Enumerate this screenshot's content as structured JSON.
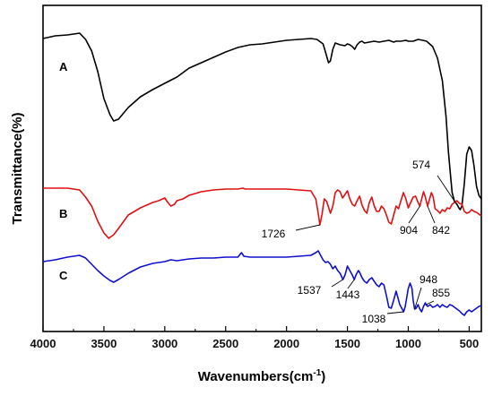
{
  "chart_data": {
    "type": "line",
    "xlabel_main": "Wavenumbers(cm",
    "xlabel_sup": "-1",
    "xlabel_end": ")",
    "ylabel": "Transmittance(%)",
    "xlim": [
      4000,
      400
    ],
    "x_reversed": true,
    "x_ticks": [
      4000,
      3500,
      3000,
      2500,
      2000,
      1500,
      1000,
      500
    ],
    "grid": false,
    "series": [
      {
        "name": "A",
        "color": "#000000",
        "points": [
          [
            4000,
            43
          ],
          [
            3900,
            40
          ],
          [
            3800,
            39
          ],
          [
            3700,
            37
          ],
          [
            3650,
            44
          ],
          [
            3600,
            57
          ],
          [
            3550,
            80
          ],
          [
            3500,
            110
          ],
          [
            3450,
            128
          ],
          [
            3420,
            135
          ],
          [
            3380,
            133
          ],
          [
            3300,
            120
          ],
          [
            3200,
            108
          ],
          [
            3100,
            100
          ],
          [
            3000,
            93
          ],
          [
            2900,
            86
          ],
          [
            2800,
            76
          ],
          [
            2700,
            70
          ],
          [
            2600,
            64
          ],
          [
            2500,
            58
          ],
          [
            2400,
            53
          ],
          [
            2300,
            50
          ],
          [
            2200,
            49
          ],
          [
            2100,
            47
          ],
          [
            2000,
            45
          ],
          [
            1900,
            44
          ],
          [
            1800,
            43
          ],
          [
            1750,
            44
          ],
          [
            1700,
            49
          ],
          [
            1680,
            58
          ],
          [
            1655,
            70
          ],
          [
            1640,
            68
          ],
          [
            1620,
            55
          ],
          [
            1600,
            48
          ],
          [
            1560,
            50
          ],
          [
            1520,
            51
          ],
          [
            1500,
            49
          ],
          [
            1480,
            50
          ],
          [
            1460,
            52
          ],
          [
            1440,
            55
          ],
          [
            1420,
            50
          ],
          [
            1400,
            47
          ],
          [
            1380,
            46
          ],
          [
            1360,
            48
          ],
          [
            1320,
            47
          ],
          [
            1280,
            46
          ],
          [
            1240,
            47
          ],
          [
            1200,
            46
          ],
          [
            1160,
            45
          ],
          [
            1120,
            47
          ],
          [
            1100,
            46
          ],
          [
            1060,
            46
          ],
          [
            1020,
            45
          ],
          [
            1000,
            46
          ],
          [
            960,
            46
          ],
          [
            920,
            44
          ],
          [
            880,
            45
          ],
          [
            850,
            46
          ],
          [
            800,
            52
          ],
          [
            760,
            65
          ],
          [
            720,
            90
          ],
          [
            690,
            130
          ],
          [
            670,
            170
          ],
          [
            650,
            200
          ],
          [
            640,
            215
          ],
          [
            620,
            225
          ],
          [
            600,
            228
          ],
          [
            585,
            232
          ],
          [
            574,
            234
          ],
          [
            560,
            230
          ],
          [
            540,
            205
          ],
          [
            520,
            172
          ],
          [
            500,
            164
          ],
          [
            480,
            168
          ],
          [
            460,
            185
          ],
          [
            440,
            208
          ],
          [
            420,
            218
          ],
          [
            400,
            222
          ]
        ]
      },
      {
        "name": "B",
        "color": "#e01010",
        "points": [
          [
            4000,
            210
          ],
          [
            3900,
            210
          ],
          [
            3800,
            210
          ],
          [
            3700,
            212
          ],
          [
            3650,
            220
          ],
          [
            3600,
            230
          ],
          [
            3550,
            247
          ],
          [
            3500,
            260
          ],
          [
            3460,
            266
          ],
          [
            3420,
            262
          ],
          [
            3380,
            255
          ],
          [
            3300,
            240
          ],
          [
            3200,
            232
          ],
          [
            3100,
            226
          ],
          [
            3050,
            224
          ],
          [
            3000,
            221
          ],
          [
            2980,
            225
          ],
          [
            2950,
            230
          ],
          [
            2920,
            228
          ],
          [
            2900,
            224
          ],
          [
            2850,
            222
          ],
          [
            2800,
            218
          ],
          [
            2700,
            214
          ],
          [
            2600,
            212
          ],
          [
            2500,
            211
          ],
          [
            2400,
            211
          ],
          [
            2360,
            210
          ],
          [
            2340,
            211
          ],
          [
            2300,
            211
          ],
          [
            2200,
            211
          ],
          [
            2100,
            211
          ],
          [
            2000,
            211
          ],
          [
            1900,
            212
          ],
          [
            1800,
            213
          ],
          [
            1760,
            222
          ],
          [
            1740,
            238
          ],
          [
            1726,
            251
          ],
          [
            1710,
            240
          ],
          [
            1690,
            222
          ],
          [
            1670,
            225
          ],
          [
            1640,
            238
          ],
          [
            1620,
            230
          ],
          [
            1600,
            215
          ],
          [
            1580,
            212
          ],
          [
            1560,
            214
          ],
          [
            1540,
            221
          ],
          [
            1520,
            217
          ],
          [
            1500,
            213
          ],
          [
            1480,
            222
          ],
          [
            1460,
            228
          ],
          [
            1440,
            230
          ],
          [
            1420,
            224
          ],
          [
            1400,
            219
          ],
          [
            1380,
            229
          ],
          [
            1360,
            235
          ],
          [
            1340,
            238
          ],
          [
            1320,
            226
          ],
          [
            1300,
            220
          ],
          [
            1280,
            230
          ],
          [
            1260,
            236
          ],
          [
            1240,
            236
          ],
          [
            1220,
            230
          ],
          [
            1200,
            233
          ],
          [
            1180,
            240
          ],
          [
            1160,
            248
          ],
          [
            1140,
            250
          ],
          [
            1120,
            240
          ],
          [
            1100,
            230
          ],
          [
            1080,
            233
          ],
          [
            1060,
            224
          ],
          [
            1040,
            215
          ],
          [
            1020,
            222
          ],
          [
            1000,
            232
          ],
          [
            980,
            226
          ],
          [
            960,
            220
          ],
          [
            940,
            219
          ],
          [
            920,
            226
          ],
          [
            904,
            230
          ],
          [
            890,
            222
          ],
          [
            875,
            214
          ],
          [
            860,
            220
          ],
          [
            842,
            230
          ],
          [
            825,
            222
          ],
          [
            810,
            215
          ],
          [
            795,
            220
          ],
          [
            780,
            233
          ],
          [
            760,
            235
          ],
          [
            740,
            238
          ],
          [
            720,
            234
          ],
          [
            700,
            236
          ],
          [
            680,
            232
          ],
          [
            660,
            233
          ],
          [
            640,
            228
          ],
          [
            620,
            226
          ],
          [
            600,
            224
          ],
          [
            580,
            227
          ],
          [
            560,
            228
          ],
          [
            540,
            236
          ],
          [
            520,
            238
          ],
          [
            500,
            237
          ],
          [
            480,
            234
          ],
          [
            460,
            236
          ],
          [
            440,
            237
          ],
          [
            420,
            239
          ],
          [
            400,
            241
          ]
        ]
      },
      {
        "name": "C",
        "color": "#1010d0",
        "points": [
          [
            4000,
            292
          ],
          [
            3900,
            290
          ],
          [
            3800,
            287
          ],
          [
            3750,
            286
          ],
          [
            3700,
            285
          ],
          [
            3650,
            288
          ],
          [
            3600,
            295
          ],
          [
            3550,
            302
          ],
          [
            3500,
            308
          ],
          [
            3450,
            313
          ],
          [
            3420,
            315
          ],
          [
            3380,
            312
          ],
          [
            3300,
            305
          ],
          [
            3200,
            298
          ],
          [
            3100,
            294
          ],
          [
            3000,
            292
          ],
          [
            2950,
            290
          ],
          [
            2900,
            291
          ],
          [
            2800,
            289
          ],
          [
            2700,
            288
          ],
          [
            2600,
            288
          ],
          [
            2500,
            287
          ],
          [
            2400,
            287
          ],
          [
            2370,
            282
          ],
          [
            2350,
            286
          ],
          [
            2300,
            287
          ],
          [
            2200,
            287
          ],
          [
            2100,
            287
          ],
          [
            2000,
            287
          ],
          [
            1900,
            286
          ],
          [
            1800,
            285
          ],
          [
            1760,
            282
          ],
          [
            1740,
            280
          ],
          [
            1720,
            285
          ],
          [
            1700,
            290
          ],
          [
            1680,
            293
          ],
          [
            1660,
            292
          ],
          [
            1640,
            295
          ],
          [
            1620,
            300
          ],
          [
            1600,
            297
          ],
          [
            1580,
            302
          ],
          [
            1560,
            305
          ],
          [
            1537,
            312
          ],
          [
            1520,
            307
          ],
          [
            1500,
            297
          ],
          [
            1480,
            302
          ],
          [
            1460,
            307
          ],
          [
            1443,
            312
          ],
          [
            1430,
            307
          ],
          [
            1410,
            302
          ],
          [
            1400,
            304
          ],
          [
            1380,
            310
          ],
          [
            1360,
            314
          ],
          [
            1340,
            316
          ],
          [
            1320,
            312
          ],
          [
            1300,
            310
          ],
          [
            1280,
            314
          ],
          [
            1260,
            318
          ],
          [
            1240,
            320
          ],
          [
            1220,
            316
          ],
          [
            1200,
            318
          ],
          [
            1180,
            330
          ],
          [
            1160,
            343
          ],
          [
            1140,
            344
          ],
          [
            1120,
            335
          ],
          [
            1100,
            325
          ],
          [
            1090,
            330
          ],
          [
            1070,
            340
          ],
          [
            1050,
            345
          ],
          [
            1038,
            348
          ],
          [
            1025,
            342
          ],
          [
            1010,
            330
          ],
          [
            1000,
            322
          ],
          [
            985,
            316
          ],
          [
            970,
            322
          ],
          [
            960,
            335
          ],
          [
            948,
            345
          ],
          [
            935,
            344
          ],
          [
            920,
            340
          ],
          [
            905,
            345
          ],
          [
            890,
            348
          ],
          [
            875,
            342
          ],
          [
            860,
            338
          ],
          [
            855,
            340
          ],
          [
            840,
            342
          ],
          [
            820,
            340
          ],
          [
            800,
            343
          ],
          [
            780,
            342
          ],
          [
            760,
            340
          ],
          [
            740,
            343
          ],
          [
            720,
            340
          ],
          [
            700,
            342
          ],
          [
            680,
            343
          ],
          [
            660,
            340
          ],
          [
            640,
            341
          ],
          [
            620,
            343
          ],
          [
            600,
            345
          ],
          [
            580,
            347
          ],
          [
            560,
            350
          ],
          [
            540,
            352
          ],
          [
            520,
            348
          ],
          [
            500,
            346
          ],
          [
            480,
            348
          ],
          [
            460,
            346
          ],
          [
            440,
            344
          ],
          [
            420,
            342
          ],
          [
            400,
            341
          ]
        ]
      }
    ],
    "annotations": [
      {
        "text": "574",
        "x": 574,
        "series": "A"
      },
      {
        "text": "1726",
        "x": 1726,
        "series": "B"
      },
      {
        "text": "904",
        "x": 904,
        "series": "B"
      },
      {
        "text": "842",
        "x": 842,
        "series": "B"
      },
      {
        "text": "948",
        "x": 948,
        "series": "C"
      },
      {
        "text": "855",
        "x": 855,
        "series": "C"
      },
      {
        "text": "1537",
        "x": 1537,
        "series": "C"
      },
      {
        "text": "1443",
        "x": 1443,
        "series": "C"
      },
      {
        "text": "1038",
        "x": 1038,
        "series": "C"
      }
    ]
  }
}
